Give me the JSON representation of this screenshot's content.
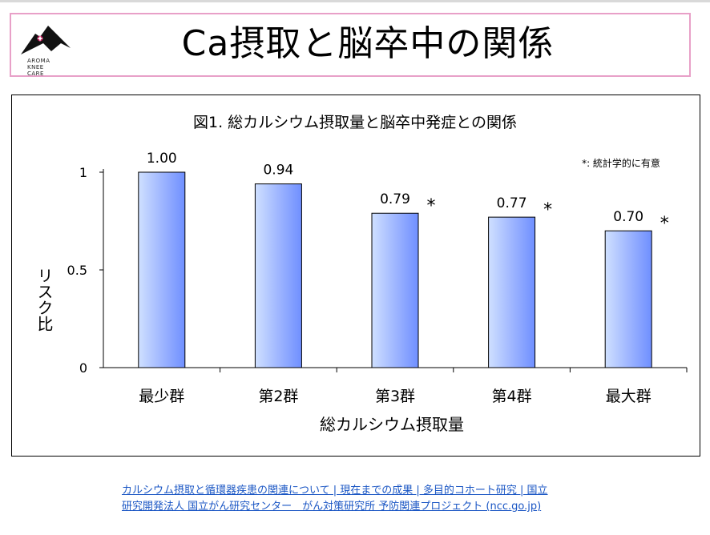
{
  "logo": {
    "lines": [
      "AROMA",
      "KNEE",
      "CARE"
    ]
  },
  "slide": {
    "title": "Ca摂取と脳卒中の関係"
  },
  "chart_data": {
    "type": "bar",
    "title": "図1. 総カルシウム摂取量と脳卒中発症との関係",
    "xlabel": "総カルシウム摂取量",
    "ylabel": "リスク比",
    "ylim": [
      0,
      1
    ],
    "yticks": [
      "0",
      "0.5",
      "1"
    ],
    "categories": [
      "最少群",
      "第2群",
      "第3群",
      "第4群",
      "最大群"
    ],
    "values": [
      1.0,
      0.94,
      0.79,
      0.77,
      0.7
    ],
    "value_labels": [
      "1.00",
      "0.94",
      "0.79",
      "0.77",
      "0.70"
    ],
    "significant": [
      false,
      false,
      true,
      true,
      true
    ],
    "significance_marker": "*",
    "legend_note": "*: 統計学的に有意",
    "bar_gradient": [
      "#cfe0ff",
      "#6f8fff"
    ]
  },
  "source": {
    "line1": "カルシウム摂取と循環器疾患の関連について | 現在までの成果 | 多目的コホート研究 | 国立",
    "line2": "研究開発法人 国立がん研究センター　がん対策研究所 予防関連プロジェクト (ncc.go.jp)"
  }
}
